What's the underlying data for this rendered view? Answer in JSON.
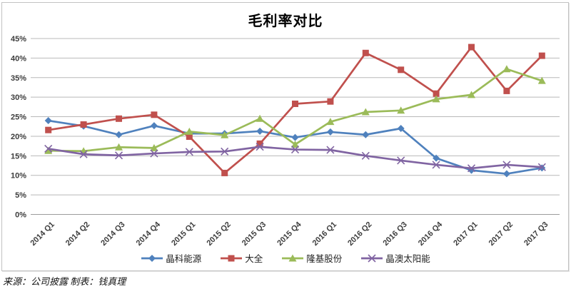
{
  "window": {
    "background": "#ffffff",
    "border_color": "#c2c2c2"
  },
  "chart_data": {
    "type": "line",
    "title": "毛利率对比",
    "categories": [
      "2014 Q1",
      "2014 Q2",
      "2014 Q3",
      "2014 Q4",
      "2015 Q1",
      "2015 Q2",
      "2015 Q3",
      "2015 Q4",
      "2016 Q1",
      "2016 Q2",
      "2016 Q3",
      "2016 Q4",
      "2017 Q1",
      "2017 Q2",
      "2017 Q3"
    ],
    "series": [
      {
        "name": "晶科能源",
        "color": "#4F81BD",
        "marker": "diamond",
        "values": [
          24.0,
          22.6,
          20.4,
          22.7,
          20.7,
          20.7,
          21.3,
          19.7,
          21.1,
          20.4,
          22.0,
          14.4,
          11.3,
          10.4,
          11.9
        ]
      },
      {
        "name": "大全",
        "color": "#C0504D",
        "marker": "square",
        "values": [
          21.6,
          23.0,
          24.5,
          25.5,
          19.9,
          10.6,
          18.1,
          28.3,
          28.9,
          41.3,
          37.0,
          30.9,
          42.8,
          31.6,
          40.6
        ]
      },
      {
        "name": "隆基股份",
        "color": "#9BBB59",
        "marker": "triangle",
        "values": [
          16.3,
          16.2,
          17.2,
          17.0,
          21.2,
          20.3,
          24.5,
          17.9,
          23.7,
          26.2,
          26.6,
          29.5,
          30.6,
          37.2,
          34.2
        ]
      },
      {
        "name": "晶澳太阳能",
        "color": "#8064A2",
        "marker": "x",
        "values": [
          16.8,
          15.4,
          15.1,
          15.6,
          16.0,
          16.1,
          17.3,
          16.6,
          16.5,
          15.0,
          13.8,
          12.7,
          11.8,
          12.7,
          12.1
        ]
      }
    ],
    "ylim": [
      0,
      45
    ],
    "ytick_step": 5,
    "ytick_labels": [
      "0%",
      "5%",
      "10%",
      "15%",
      "20%",
      "25%",
      "30%",
      "35%",
      "40%",
      "45%"
    ],
    "grid": true,
    "gridline_color": "#b9b9b9",
    "axis_line_color": "#9c9c9c",
    "axis_text_color": "#3c3c3c",
    "legend_position": "bottom"
  },
  "footer": {
    "text": "来源：公司披露  制表：钱真理"
  }
}
